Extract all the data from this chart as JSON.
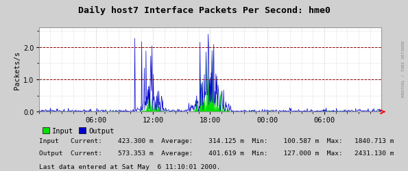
{
  "title": "Daily host7 Interface Packets Per Second: hme0",
  "ylabel": "Packets/s",
  "bg_color": "#d0d0d0",
  "plot_bg_color": "#ffffff",
  "grid_color": "#bbbbbb",
  "input_color": "#00e000",
  "output_color": "#0000cc",
  "hline_color": "#880000",
  "ytick_vals": [
    0.0,
    1.0,
    2.0
  ],
  "ylim": [
    0,
    2.6
  ],
  "xtick_labels": [
    "06:00",
    "12:00",
    "18:00",
    "00:00",
    "06:00"
  ],
  "legend_input": "Input",
  "legend_output": "Output",
  "stats_line1": "Input   Current:    423.300 m  Average:    314.125 m  Min:    100.587 m  Max:   1840.713 m",
  "stats_line2": "Output  Current:    573.353 m  Average:    401.619 m  Min:    127.000 m  Max:   2431.130 m",
  "last_data": "Last data entered at Sat May  6 11:10:01 2000.",
  "watermark": "RRDTOOL / TOBI OETIKER",
  "num_points": 800,
  "seed": 12345
}
